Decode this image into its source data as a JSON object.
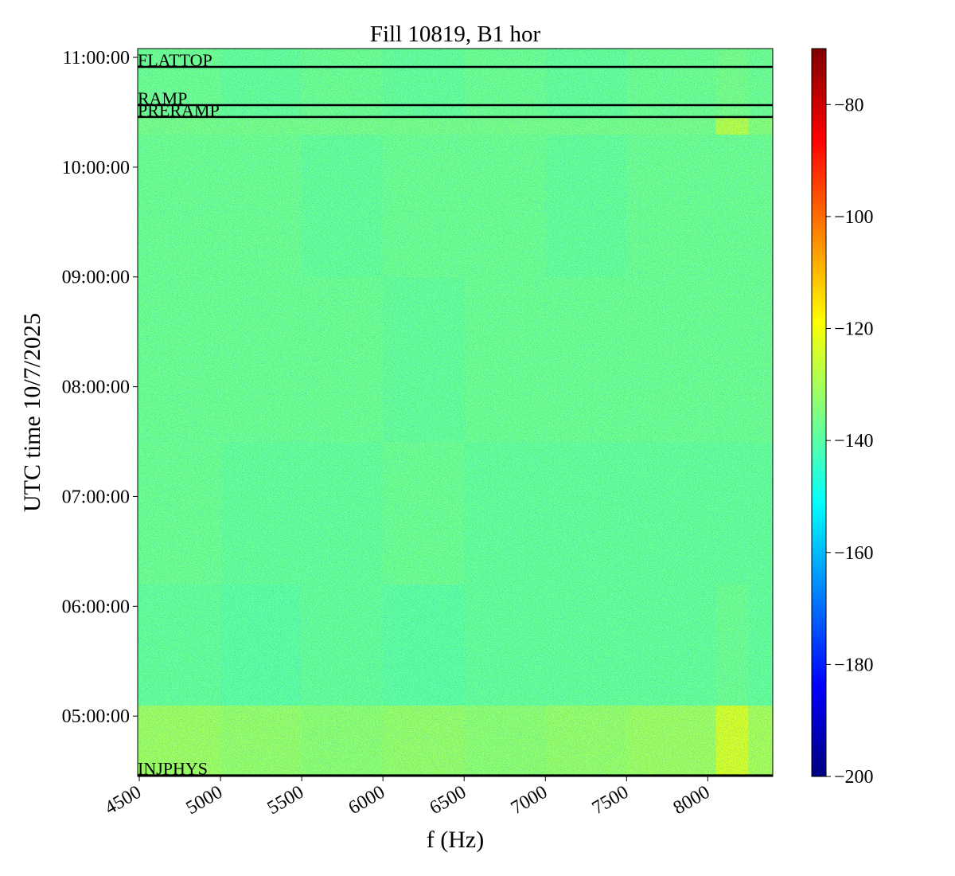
{
  "chart_data": {
    "type": "heatmap",
    "title": "Fill 10819, B1 hor",
    "x_label": "f (Hz)",
    "y_label": "UTC time 10/7/2025",
    "colormap": "jet",
    "xlim": [
      4490,
      8400
    ],
    "xticks": [
      4500,
      5000,
      5500,
      6000,
      6500,
      7000,
      7500,
      8000
    ],
    "ylim": [
      4.45,
      11.08
    ],
    "yticks": [
      {
        "value": 5,
        "label": "05:00:00"
      },
      {
        "value": 6,
        "label": "06:00:00"
      },
      {
        "value": 7,
        "label": "07:00:00"
      },
      {
        "value": 8,
        "label": "08:00:00"
      },
      {
        "value": 9,
        "label": "09:00:00"
      },
      {
        "value": 10,
        "label": "10:00:00"
      },
      {
        "value": 11,
        "label": "11:00:00"
      }
    ],
    "clim": [
      -200,
      -70
    ],
    "cticks": [
      {
        "value": -200,
        "label": "−200"
      },
      {
        "value": -180,
        "label": "−180"
      },
      {
        "value": -160,
        "label": "−160"
      },
      {
        "value": -140,
        "label": "−140"
      },
      {
        "value": -120,
        "label": "−120"
      },
      {
        "value": -100,
        "label": "−100"
      },
      {
        "value": -80,
        "label": "−80"
      }
    ],
    "heatmap": {
      "x_edges": [
        4490,
        5000,
        5500,
        6000,
        6500,
        7000,
        7500,
        8050,
        8250,
        8400
      ],
      "y_edges": [
        4.45,
        5.1,
        6.2,
        7.5,
        9.0,
        10.3,
        10.45,
        11.08
      ],
      "values": [
        [
          -131,
          -132,
          -133,
          -132,
          -133,
          -132,
          -131,
          -124,
          -130
        ],
        [
          -138,
          -139,
          -138,
          -139,
          -138,
          -138,
          -138,
          -137,
          -138
        ],
        [
          -137,
          -138,
          -138,
          -137,
          -138,
          -138,
          -138,
          -138,
          -138
        ],
        [
          -137,
          -137,
          -137,
          -138,
          -137,
          -137,
          -137,
          -137,
          -137
        ],
        [
          -137,
          -137,
          -138,
          -137,
          -137,
          -138,
          -137,
          -137,
          -137
        ],
        [
          -136,
          -136,
          -136,
          -136,
          -136,
          -136,
          -136,
          -128,
          -134
        ],
        [
          -137,
          -138,
          -137,
          -138,
          -137,
          -138,
          -137,
          -136,
          -137
        ]
      ]
    },
    "annotations": [
      {
        "label": "INJPHYS",
        "time": 4.46
      },
      {
        "label": "PRERAMP",
        "time": 10.457
      },
      {
        "label": "RAMP",
        "time": 10.565
      },
      {
        "label": "FLATTOP",
        "time": 10.913
      }
    ]
  }
}
